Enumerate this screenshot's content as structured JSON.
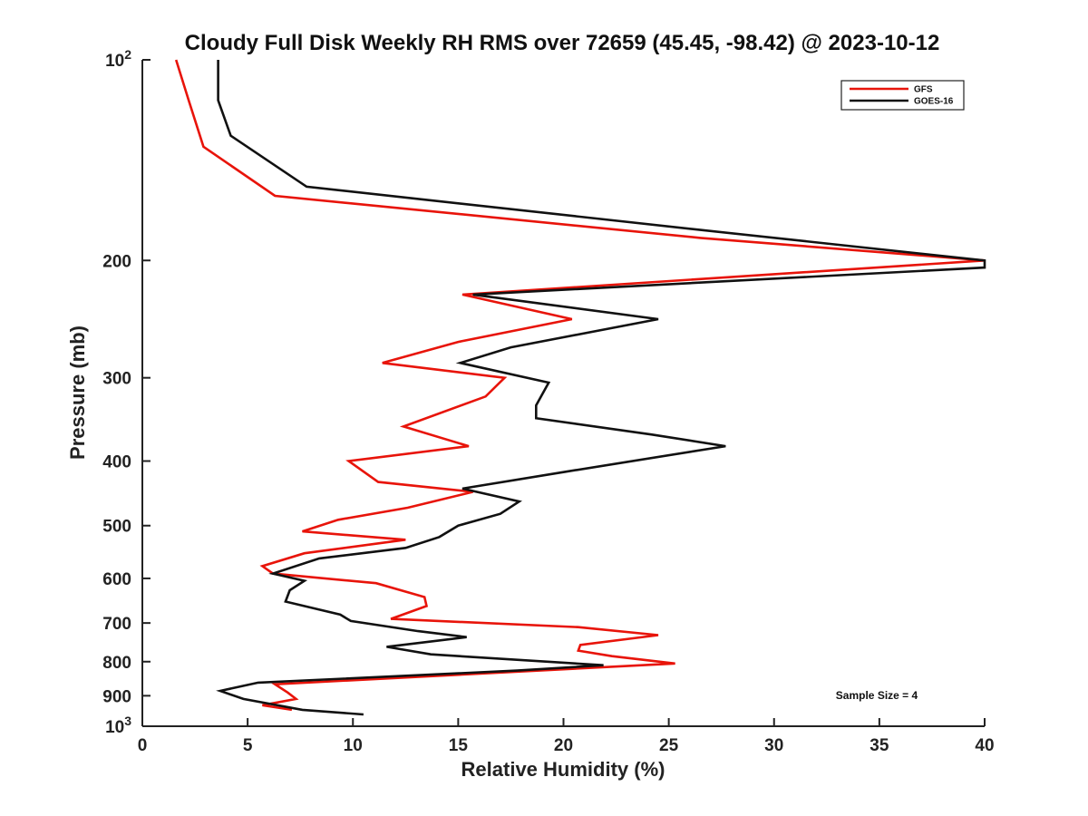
{
  "chart_data": {
    "type": "line",
    "title": "Cloudy Full Disk Weekly RH RMS over 72659 (45.45, -98.42) @ 2023-10-12",
    "xlabel": "Relative Humidity (%)",
    "ylabel": "Pressure (mb)",
    "xlim": [
      0,
      40
    ],
    "ylim": [
      100,
      1000
    ],
    "y_scale": "log",
    "y_reversed": true,
    "grid": false,
    "legend_position": "top-right",
    "x_ticks": [
      "0",
      "5",
      "10",
      "15",
      "20",
      "25",
      "30",
      "35",
      "40"
    ],
    "y_ticks": [
      {
        "value": 100,
        "base": "10",
        "exp": "2"
      },
      {
        "value": 200,
        "label": "200"
      },
      {
        "value": 300,
        "label": "300"
      },
      {
        "value": 400,
        "label": "400"
      },
      {
        "value": 500,
        "label": "500"
      },
      {
        "value": 600,
        "label": "600"
      },
      {
        "value": 700,
        "label": "700"
      },
      {
        "value": 800,
        "label": "800"
      },
      {
        "value": 900,
        "label": "900"
      },
      {
        "value": 1000,
        "base": "10",
        "exp": "3"
      }
    ],
    "series": [
      {
        "name": "GFS",
        "color": "#e8140a",
        "points": [
          [
            1.6,
            100
          ],
          [
            2.2,
            115
          ],
          [
            2.9,
            135
          ],
          [
            6.3,
            160
          ],
          [
            26.5,
            185
          ],
          [
            40,
            200
          ],
          [
            15.2,
            225
          ],
          [
            20.4,
            245
          ],
          [
            15.0,
            265
          ],
          [
            11.4,
            285
          ],
          [
            17.2,
            300
          ],
          [
            16.3,
            320
          ],
          [
            12.4,
            355
          ],
          [
            15.5,
            380
          ],
          [
            9.8,
            400
          ],
          [
            11.2,
            430
          ],
          [
            15.7,
            445
          ],
          [
            12.6,
            470
          ],
          [
            9.3,
            490
          ],
          [
            7.6,
            510
          ],
          [
            12.5,
            525
          ],
          [
            7.7,
            550
          ],
          [
            5.7,
            575
          ],
          [
            6.2,
            590
          ],
          [
            11.1,
            610
          ],
          [
            13.4,
            640
          ],
          [
            13.5,
            660
          ],
          [
            11.8,
            690
          ],
          [
            20.7,
            710
          ],
          [
            24.5,
            730
          ],
          [
            20.8,
            755
          ],
          [
            20.7,
            770
          ],
          [
            22.3,
            785
          ],
          [
            25.3,
            805
          ],
          [
            6.3,
            865
          ],
          [
            6.9,
            890
          ],
          [
            7.3,
            910
          ],
          [
            5.7,
            930
          ],
          [
            7.1,
            945
          ]
        ]
      },
      {
        "name": "GOES-16",
        "color": "#111111",
        "points": [
          [
            3.6,
            100
          ],
          [
            3.6,
            115
          ],
          [
            4.2,
            130
          ],
          [
            7.8,
            155
          ],
          [
            26.5,
            180
          ],
          [
            40,
            200
          ],
          [
            40,
            205
          ],
          [
            15.7,
            225
          ],
          [
            24.5,
            245
          ],
          [
            17.5,
            270
          ],
          [
            15.1,
            285
          ],
          [
            19.3,
            305
          ],
          [
            18.7,
            330
          ],
          [
            18.7,
            345
          ],
          [
            24.2,
            365
          ],
          [
            27.7,
            380
          ],
          [
            20.1,
            415
          ],
          [
            15.2,
            440
          ],
          [
            17.9,
            460
          ],
          [
            17.0,
            480
          ],
          [
            15.0,
            500
          ],
          [
            14.1,
            520
          ],
          [
            12.5,
            540
          ],
          [
            8.4,
            560
          ],
          [
            6.2,
            590
          ],
          [
            7.7,
            605
          ],
          [
            7.0,
            625
          ],
          [
            6.8,
            650
          ],
          [
            9.4,
            680
          ],
          [
            9.9,
            695
          ],
          [
            13.1,
            720
          ],
          [
            15.4,
            735
          ],
          [
            11.6,
            760
          ],
          [
            13.7,
            780
          ],
          [
            21.9,
            810
          ],
          [
            17.8,
            825
          ],
          [
            5.5,
            860
          ],
          [
            3.7,
            885
          ],
          [
            4.8,
            910
          ],
          [
            7.6,
            945
          ],
          [
            10.5,
            960
          ]
        ]
      }
    ],
    "annotation": "Sample Size = 4"
  }
}
